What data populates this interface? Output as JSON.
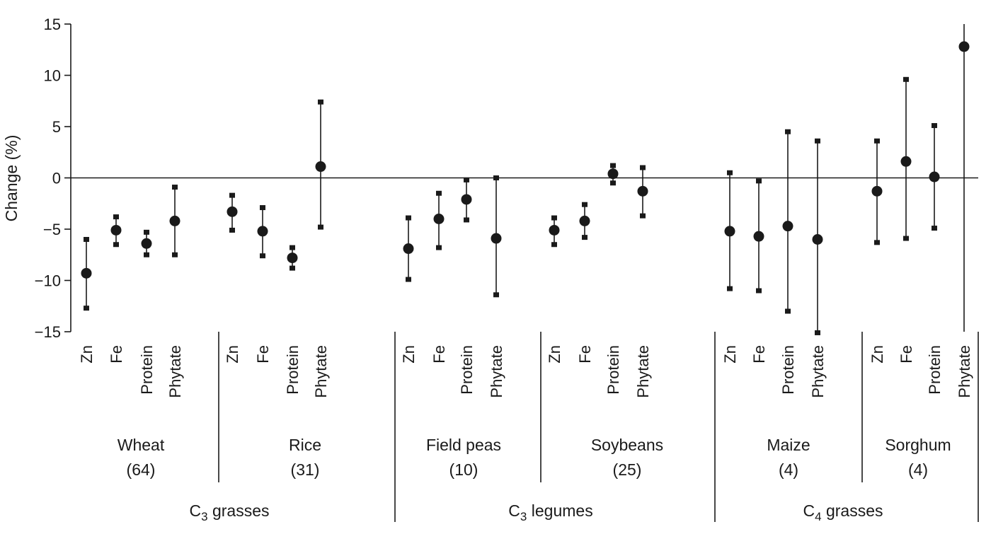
{
  "chart_data": {
    "type": "scatter",
    "ylabel": "Change (%)",
    "ylim": [
      -15,
      15
    ],
    "yticks": [
      15,
      10,
      5,
      0,
      -5,
      -10,
      -15
    ],
    "ytick_labels": [
      "15",
      "10",
      "5",
      "0",
      "−5",
      "−10",
      "−15"
    ],
    "zero_line": true,
    "groups": [
      {
        "name": "C",
        "sub": "3",
        "suffix": " grasses",
        "crops": [
          {
            "name": "Wheat",
            "n": "(64)",
            "items": [
              {
                "nutrient": "Zn",
                "mean": -9.3,
                "low": -12.7,
                "high": -6.0
              },
              {
                "nutrient": "Fe",
                "mean": -5.1,
                "low": -6.5,
                "high": -3.8
              },
              {
                "nutrient": "Protein",
                "mean": -6.4,
                "low": -7.5,
                "high": -5.3
              },
              {
                "nutrient": "Phytate",
                "mean": -4.2,
                "low": -7.5,
                "high": -0.9
              }
            ]
          },
          {
            "name": "Rice",
            "n": "(31)",
            "items": [
              {
                "nutrient": "Zn",
                "mean": -3.3,
                "low": -5.1,
                "high": -1.7
              },
              {
                "nutrient": "Fe",
                "mean": -5.2,
                "low": -7.6,
                "high": -2.9
              },
              {
                "nutrient": "Protein",
                "mean": -7.8,
                "low": -8.8,
                "high": -6.8
              },
              {
                "nutrient": "Phytate",
                "mean": 1.1,
                "low": -4.8,
                "high": 7.4
              }
            ]
          }
        ]
      },
      {
        "name": "C",
        "sub": "3",
        "suffix": " legumes",
        "crops": [
          {
            "name": "Field peas",
            "n": "(10)",
            "items": [
              {
                "nutrient": "Zn",
                "mean": -6.9,
                "low": -9.9,
                "high": -3.9
              },
              {
                "nutrient": "Fe",
                "mean": -4.0,
                "low": -6.8,
                "high": -1.5
              },
              {
                "nutrient": "Protein",
                "mean": -2.1,
                "low": -4.1,
                "high": -0.2
              },
              {
                "nutrient": "Phytate",
                "mean": -5.9,
                "low": -11.4,
                "high": 0.0
              }
            ]
          },
          {
            "name": "Soybeans",
            "n": "(25)",
            "items": [
              {
                "nutrient": "Zn",
                "mean": -5.1,
                "low": -6.5,
                "high": -3.9
              },
              {
                "nutrient": "Fe",
                "mean": -4.2,
                "low": -5.8,
                "high": -2.6
              },
              {
                "nutrient": "Protein",
                "mean": 0.4,
                "low": -0.5,
                "high": 1.2
              },
              {
                "nutrient": "Phytate",
                "mean": -1.3,
                "low": -3.7,
                "high": 1.0
              }
            ]
          }
        ]
      },
      {
        "name": "C",
        "sub": "4",
        "suffix": " grasses",
        "crops": [
          {
            "name": "Maize",
            "n": "(4)",
            "items": [
              {
                "nutrient": "Zn",
                "mean": -5.2,
                "low": -10.8,
                "high": 0.5
              },
              {
                "nutrient": "Fe",
                "mean": -5.7,
                "low": -11.0,
                "high": -0.3
              },
              {
                "nutrient": "Protein",
                "mean": -4.7,
                "low": -13.0,
                "high": 4.5
              },
              {
                "nutrient": "Phytate",
                "mean": -6.0,
                "low": -15.1,
                "high": 3.6
              }
            ]
          },
          {
            "name": "Sorghum",
            "n": "(4)",
            "items": [
              {
                "nutrient": "Zn",
                "mean": -1.3,
                "low": -6.3,
                "high": 3.6
              },
              {
                "nutrient": "Fe",
                "mean": 1.6,
                "low": -5.9,
                "high": 9.6
              },
              {
                "nutrient": "Protein",
                "mean": 0.1,
                "low": -4.9,
                "high": 5.1
              },
              {
                "nutrient": "Phytate",
                "mean": 12.8
              }
            ]
          }
        ]
      }
    ]
  }
}
